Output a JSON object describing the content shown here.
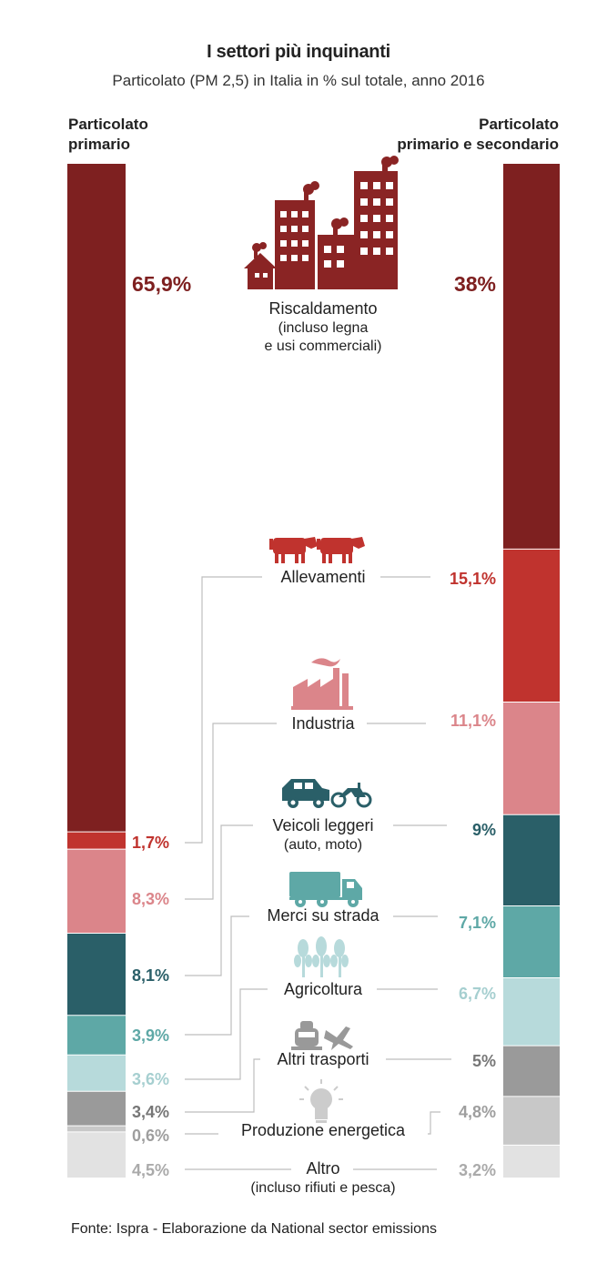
{
  "title": "I settori più inquinanti",
  "subtitle": "Particolato (PM 2,5) in Italia in % sul totale, anno 2016",
  "left_header": [
    "Particolato",
    "primario"
  ],
  "right_header": [
    "Particolato",
    "primario e secondario"
  ],
  "source": "Fonte: Ispra - Elaborazione da National sector emissions",
  "chart_data": {
    "type": "bar",
    "layout": "two stacked 100% columns",
    "categories": [
      "Riscaldamento (incluso legna e usi commerciali)",
      "Allevamenti",
      "Industria",
      "Veicoli leggeri (auto, moto)",
      "Merci su strada",
      "Agricoltura",
      "Altri trasporti",
      "Produzione energetica",
      "Altro (incluso rifiuti e pesca)"
    ],
    "series": [
      {
        "name": "Particolato primario",
        "values": [
          65.9,
          1.7,
          8.3,
          8.1,
          3.9,
          3.6,
          3.4,
          0.6,
          4.5
        ],
        "labels": [
          "65,9%",
          "1,7%",
          "8,3%",
          "8,1%",
          "3,9%",
          "3,6%",
          "3,4%",
          "0,6%",
          "4,5%"
        ]
      },
      {
        "name": "Particolato primario e secondario",
        "values": [
          38,
          15.1,
          11.1,
          9,
          7.1,
          6.7,
          5,
          4.8,
          3.2
        ],
        "labels": [
          "38%",
          "15,1%",
          "11,1%",
          "9%",
          "7,1%",
          "6,7%",
          "5%",
          "4,8%",
          "3,2%"
        ]
      }
    ],
    "colors": [
      "#7e2020",
      "#c0332e",
      "#db858a",
      "#2a5f68",
      "#5ea8a6",
      "#b7dadb",
      "#9a9a9a",
      "#c8c8c8",
      "#e2e2e2"
    ],
    "label_colors": [
      "#7e2020",
      "#c0332e",
      "#db858a",
      "#2a5f68",
      "#5ea8a6",
      "#a6cfd0",
      "#777777",
      "#9e9e9e",
      "#aaaaaa"
    ],
    "sectors": [
      {
        "name": "Riscaldamento",
        "sub": [
          "(incluso legna",
          "e usi commerciali)"
        ],
        "icon": "factory-city-icon"
      },
      {
        "name": "Allevamenti",
        "sub": [],
        "icon": "cows-icon"
      },
      {
        "name": "Industria",
        "sub": [],
        "icon": "factory-icon"
      },
      {
        "name": "Veicoli leggeri",
        "sub": [
          "(auto, moto)"
        ],
        "icon": "car-motorbike-icon"
      },
      {
        "name": "Merci su strada",
        "sub": [],
        "icon": "truck-icon"
      },
      {
        "name": "Agricoltura",
        "sub": [],
        "icon": "wheat-icon"
      },
      {
        "name": "Altri trasporti",
        "sub": [],
        "icon": "train-plane-icon"
      },
      {
        "name": "Produzione energetica",
        "sub": [],
        "icon": "lightbulb-icon"
      },
      {
        "name": "Altro",
        "sub": [
          "(incluso rifiuti e pesca)"
        ],
        "icon": ""
      }
    ]
  }
}
